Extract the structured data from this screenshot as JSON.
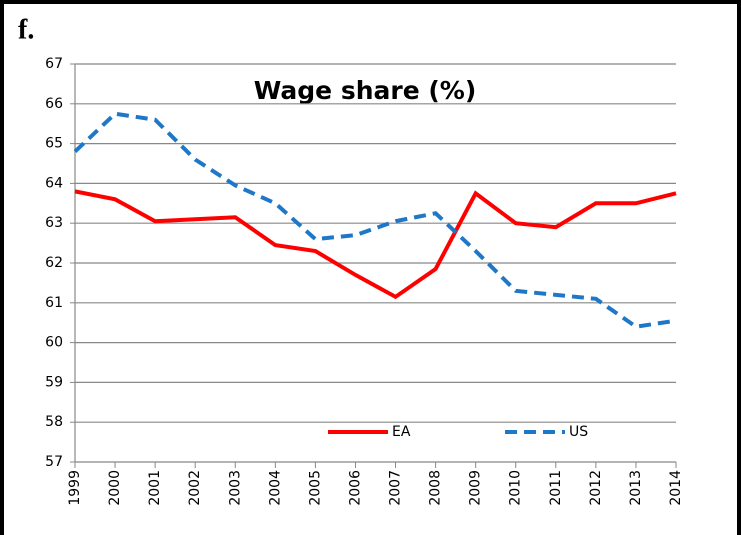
{
  "panel_label": "f.",
  "chart_data": {
    "type": "line",
    "title": "Wage share (%)",
    "categories": [
      "1999",
      "2000",
      "2001",
      "2002",
      "2003",
      "2004",
      "2005",
      "2006",
      "2007",
      "2008",
      "2009",
      "2010",
      "2011",
      "2012",
      "2013",
      "2014"
    ],
    "series": [
      {
        "name": "EA",
        "color": "#ff0000",
        "dash": "solid",
        "values": [
          63.8,
          63.6,
          63.05,
          63.1,
          63.15,
          62.45,
          62.3,
          61.7,
          61.15,
          61.85,
          63.75,
          63.0,
          62.9,
          63.5,
          63.5,
          63.75
        ]
      },
      {
        "name": "US",
        "color": "#1f77c8",
        "dash": "dashed",
        "values": [
          64.8,
          65.75,
          65.6,
          64.6,
          63.95,
          63.5,
          62.6,
          62.7,
          63.05,
          63.25,
          62.3,
          61.3,
          61.2,
          61.1,
          60.4,
          60.55
        ]
      }
    ],
    "ylim": [
      57,
      67
    ],
    "yticks": [
      57,
      58,
      59,
      60,
      61,
      62,
      63,
      64,
      65,
      66,
      67
    ],
    "grid": true
  }
}
